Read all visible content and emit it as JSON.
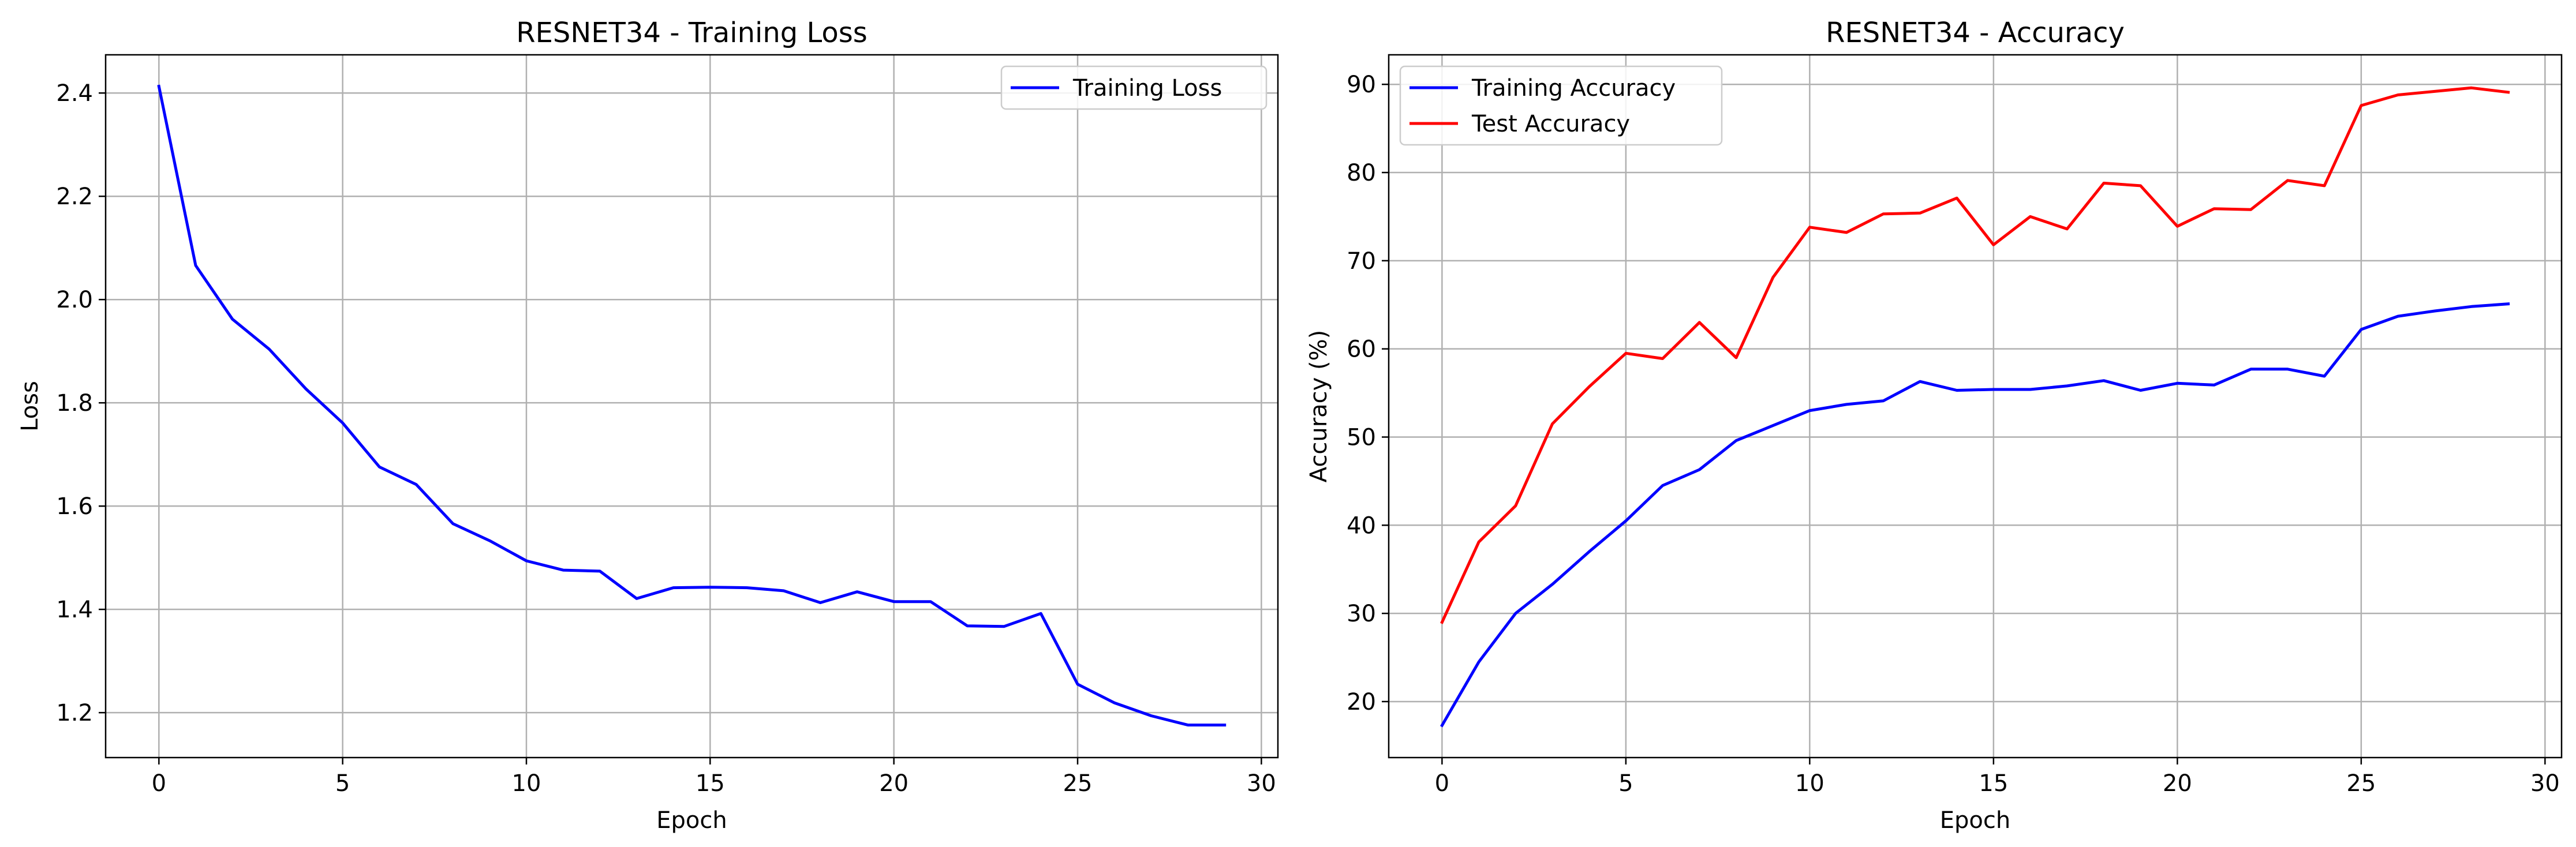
{
  "chart_data": [
    {
      "type": "line",
      "title": "RESNET34 - Training Loss",
      "xlabel": "Epoch",
      "ylabel": "Loss",
      "xlim": [
        -1.45,
        30.45
      ],
      "ylim": [
        1.113,
        2.474
      ],
      "xticks": [
        0,
        5,
        10,
        15,
        20,
        25,
        30
      ],
      "yticks": [
        1.2,
        1.4,
        1.6,
        1.8,
        2.0,
        2.2,
        2.4
      ],
      "ytick_labels": [
        "1.2",
        "1.4",
        "1.6",
        "1.8",
        "2.0",
        "2.2",
        "2.4"
      ],
      "grid": true,
      "legend_position": "top-right",
      "x": [
        0,
        1,
        2,
        3,
        4,
        5,
        6,
        7,
        8,
        9,
        10,
        11,
        12,
        13,
        14,
        15,
        16,
        17,
        18,
        19,
        20,
        21,
        22,
        23,
        24,
        25,
        26,
        27,
        28,
        29
      ],
      "series": [
        {
          "name": "Training Loss",
          "color": "#0000ff",
          "values": [
            2.413,
            2.066,
            1.962,
            1.904,
            1.827,
            1.761,
            1.676,
            1.642,
            1.566,
            1.533,
            1.494,
            1.476,
            1.474,
            1.421,
            1.442,
            1.443,
            1.442,
            1.436,
            1.413,
            1.434,
            1.415,
            1.415,
            1.368,
            1.367,
            1.392,
            1.255,
            1.219,
            1.194,
            1.176,
            1.176
          ]
        }
      ]
    },
    {
      "type": "line",
      "title": "RESNET34 - Accuracy",
      "xlabel": "Epoch",
      "ylabel": "Accuracy (%)",
      "xlim": [
        -1.45,
        30.45
      ],
      "ylim": [
        13.65,
        93.35
      ],
      "xticks": [
        0,
        5,
        10,
        15,
        20,
        25,
        30
      ],
      "yticks": [
        20,
        30,
        40,
        50,
        60,
        70,
        80,
        90
      ],
      "ytick_labels": [
        "20",
        "30",
        "40",
        "50",
        "60",
        "70",
        "80",
        "90"
      ],
      "grid": true,
      "legend_position": "top-left",
      "x": [
        0,
        1,
        2,
        3,
        4,
        5,
        6,
        7,
        8,
        9,
        10,
        11,
        12,
        13,
        14,
        15,
        16,
        17,
        18,
        19,
        20,
        21,
        22,
        23,
        24,
        25,
        26,
        27,
        28,
        29
      ],
      "series": [
        {
          "name": "Training Accuracy",
          "color": "#0000ff",
          "values": [
            17.3,
            24.5,
            30.0,
            33.3,
            37.0,
            40.5,
            44.5,
            46.3,
            49.6,
            51.3,
            53.0,
            53.7,
            54.1,
            56.3,
            55.3,
            55.4,
            55.4,
            55.8,
            56.4,
            55.3,
            56.1,
            55.9,
            57.7,
            57.7,
            56.9,
            62.2,
            63.7,
            64.3,
            64.8,
            65.1
          ]
        },
        {
          "name": "Test Accuracy",
          "color": "#ff0000",
          "values": [
            29.0,
            38.1,
            42.2,
            51.5,
            55.7,
            59.5,
            58.9,
            63.0,
            59.0,
            68.1,
            73.8,
            73.2,
            75.3,
            75.4,
            77.1,
            71.8,
            75.0,
            73.6,
            78.8,
            78.5,
            73.9,
            75.9,
            75.8,
            79.1,
            78.5,
            87.6,
            88.8,
            89.2,
            89.6,
            89.1
          ]
        }
      ]
    }
  ]
}
